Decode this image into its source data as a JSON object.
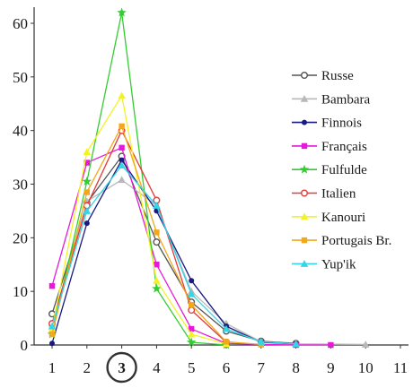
{
  "chart_data": {
    "type": "line",
    "categories": [
      "1",
      "2",
      "3",
      "4",
      "5",
      "6",
      "7",
      "8",
      "9",
      "10",
      "11"
    ],
    "highlighted_category": "3",
    "ylim": [
      0,
      62
    ],
    "yticks": [
      "0",
      "10",
      "20",
      "30",
      "40",
      "50",
      "60"
    ],
    "grid": false,
    "legend_position": "right",
    "series": [
      {
        "name": "Russe",
        "color": "#555555",
        "marker": "open-circle",
        "values": [
          5.8,
          26.5,
          35.2,
          19.2,
          8.0,
          2.6,
          0.7,
          0.3,
          null,
          null,
          null
        ]
      },
      {
        "name": "Bambara",
        "color": "#b8b8b8",
        "marker": "triangle",
        "values": [
          4.0,
          26.8,
          30.8,
          26.0,
          10.0,
          4.0,
          0.6,
          0.2,
          null,
          0.1,
          null
        ]
      },
      {
        "name": "Finnois",
        "color": "#1a1a80",
        "marker": "filled-circle",
        "values": [
          0.3,
          22.7,
          34.5,
          25.0,
          12.0,
          3.5,
          0.5,
          0.2,
          null,
          null,
          null
        ]
      },
      {
        "name": "Français",
        "color": "#e619d9",
        "marker": "square",
        "values": [
          11.0,
          34.0,
          36.8,
          15.0,
          3.0,
          0.3,
          0.1,
          0.0,
          0.0,
          null,
          null
        ]
      },
      {
        "name": "Fulfulde",
        "color": "#33cc33",
        "marker": "star",
        "values": [
          2.0,
          30.5,
          62.0,
          10.5,
          0.5,
          0.0,
          null,
          null,
          null,
          null,
          null
        ]
      },
      {
        "name": "Italien",
        "color": "#e33a3a",
        "marker": "open-circle",
        "values": [
          4.0,
          26.0,
          40.0,
          27.0,
          6.5,
          0.5,
          null,
          null,
          null,
          null,
          null
        ]
      },
      {
        "name": "Kanouri",
        "color": "#f2f224",
        "marker": "triangle",
        "values": [
          3.0,
          36.0,
          46.5,
          12.0,
          2.0,
          0.2,
          null,
          null,
          null,
          null,
          null
        ]
      },
      {
        "name": "Portugais Br.",
        "color": "#f2a81a",
        "marker": "square",
        "values": [
          2.0,
          28.5,
          40.8,
          21.0,
          7.5,
          0.6,
          0.1,
          null,
          null,
          null,
          null
        ]
      },
      {
        "name": "Yup'ik",
        "color": "#33d6e6",
        "marker": "triangle",
        "values": [
          3.5,
          25.0,
          33.5,
          26.0,
          9.5,
          3.0,
          0.6,
          0.2,
          null,
          null,
          null
        ]
      }
    ]
  }
}
